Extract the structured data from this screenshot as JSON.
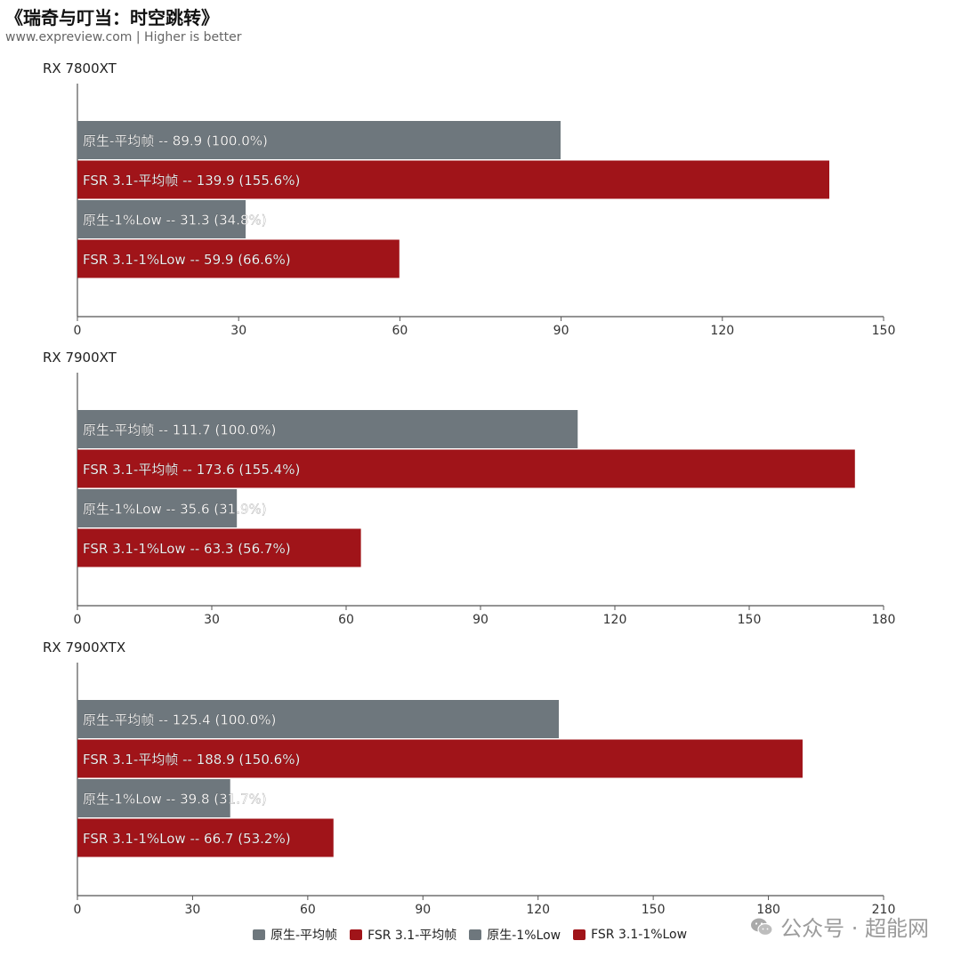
{
  "header": {
    "title": "《瑞奇与叮当：时空跳转》",
    "subtitle": "www.expreview.com | Higher is better"
  },
  "colors": {
    "native": "#6e777d",
    "fsr": "#a01419",
    "axis": "#555555"
  },
  "legend": [
    {
      "label": "原生-平均帧",
      "color": "#6e777d"
    },
    {
      "label": "FSR 3.1-平均帧",
      "color": "#a01419"
    },
    {
      "label": "原生-1%Low",
      "color": "#6e777d"
    },
    {
      "label": "FSR 3.1-1%Low",
      "color": "#a01419"
    }
  ],
  "watermark": {
    "text": "公众号 · 超能网",
    "icon": "wechat-icon"
  },
  "chart_data": [
    {
      "type": "bar",
      "orientation": "horizontal",
      "title": "RX 7800XT",
      "xlim": [
        0,
        150
      ],
      "xticks": [
        0,
        30,
        60,
        90,
        120,
        150
      ],
      "bars": [
        {
          "series": "原生-平均帧",
          "value": 89.9,
          "label": "原生-平均帧  --  89.9 (100.0%)",
          "color": "#6e777d"
        },
        {
          "series": "FSR 3.1-平均帧",
          "value": 139.9,
          "label": "FSR 3.1-平均帧  --  139.9 (155.6%)",
          "color": "#a01419"
        },
        {
          "series": "原生-1%Low",
          "value": 31.3,
          "label": "原生-1%Low  --  31.3 (34.8%)",
          "color": "#6e777d"
        },
        {
          "series": "FSR 3.1-1%Low",
          "value": 59.9,
          "label": "FSR 3.1-1%Low  --  59.9 (66.6%)",
          "color": "#a01419"
        }
      ]
    },
    {
      "type": "bar",
      "orientation": "horizontal",
      "title": "RX 7900XT",
      "xlim": [
        0,
        180
      ],
      "xticks": [
        0,
        30,
        60,
        90,
        120,
        150,
        180
      ],
      "bars": [
        {
          "series": "原生-平均帧",
          "value": 111.7,
          "label": "原生-平均帧  --  111.7 (100.0%)",
          "color": "#6e777d"
        },
        {
          "series": "FSR 3.1-平均帧",
          "value": 173.6,
          "label": "FSR 3.1-平均帧  --  173.6 (155.4%)",
          "color": "#a01419"
        },
        {
          "series": "原生-1%Low",
          "value": 35.6,
          "label": "原生-1%Low  --  35.6 (31.9%)",
          "color": "#6e777d"
        },
        {
          "series": "FSR 3.1-1%Low",
          "value": 63.3,
          "label": "FSR 3.1-1%Low  --  63.3 (56.7%)",
          "color": "#a01419"
        }
      ]
    },
    {
      "type": "bar",
      "orientation": "horizontal",
      "title": "RX 7900XTX",
      "xlim": [
        0,
        210
      ],
      "xticks": [
        0,
        30,
        60,
        90,
        120,
        150,
        180,
        210
      ],
      "bars": [
        {
          "series": "原生-平均帧",
          "value": 125.4,
          "label": "原生-平均帧  --  125.4 (100.0%)",
          "color": "#6e777d"
        },
        {
          "series": "FSR 3.1-平均帧",
          "value": 188.9,
          "label": "FSR 3.1-平均帧  --  188.9 (150.6%)",
          "color": "#a01419"
        },
        {
          "series": "原生-1%Low",
          "value": 39.8,
          "label": "原生-1%Low  --  39.8 (31.7%)",
          "color": "#6e777d"
        },
        {
          "series": "FSR 3.1-1%Low",
          "value": 66.7,
          "label": "FSR 3.1-1%Low  --  66.7 (53.2%)",
          "color": "#a01419"
        }
      ]
    }
  ]
}
